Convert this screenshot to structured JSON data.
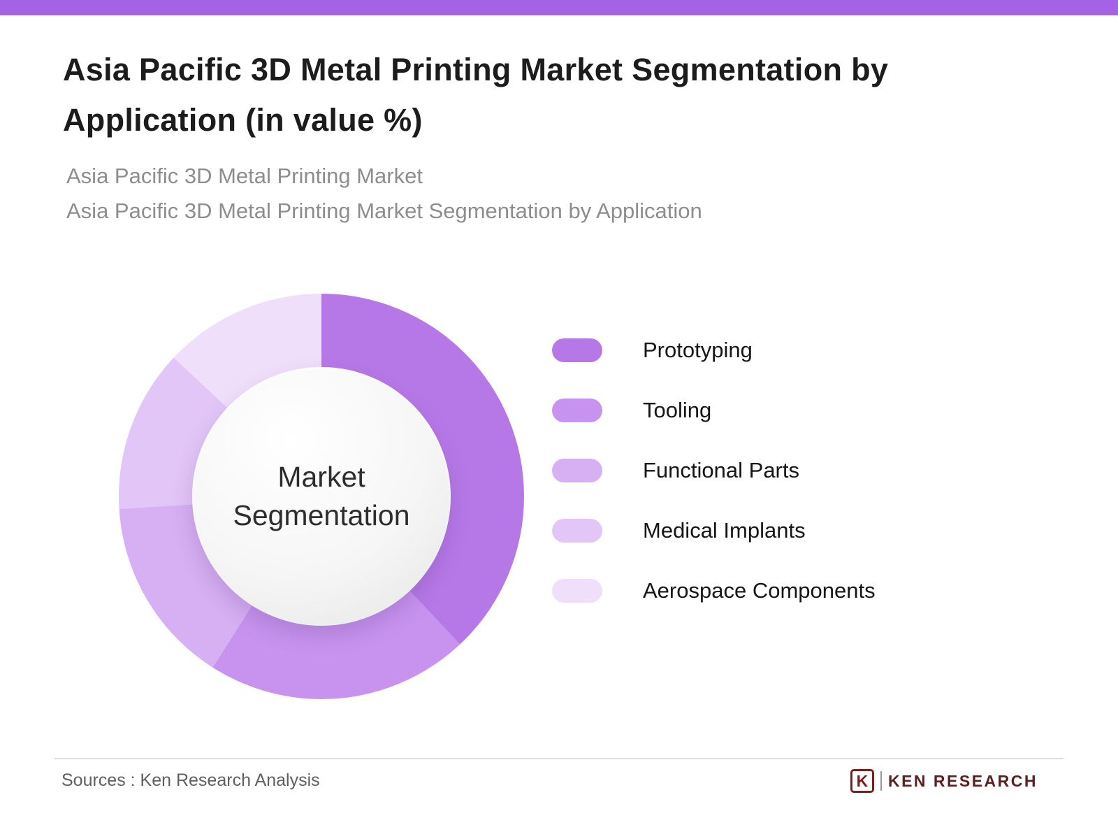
{
  "theme": {
    "accent_color": "#a562e5",
    "title_color": "#1c1c1c",
    "subtitle_color": "#8d8d8d"
  },
  "header": {
    "title": "Asia Pacific 3D Metal Printing Market Segmentation by Application (in value %)",
    "subtitle_line1": "Asia Pacific 3D Metal Printing Market",
    "subtitle_line2": "Asia Pacific 3D Metal Printing Market Segmentation by Application"
  },
  "chart_data": {
    "type": "pie",
    "variant": "donut",
    "title": "Asia Pacific 3D Metal Printing Market Segmentation by Application (in value %)",
    "center_label": "Market Segmentation",
    "categories": [
      "Prototyping",
      "Tooling",
      "Functional Parts",
      "Medical Implants",
      "Aerospace Components"
    ],
    "values": [
      38,
      21,
      15,
      13,
      13
    ],
    "unit": "%",
    "colors": [
      "#b678e6",
      "#c893ee",
      "#d7aff3",
      "#e2c6f7",
      "#efdffb"
    ],
    "legend_position": "right",
    "data_labels_shown": false,
    "start_angle_deg": 0,
    "direction": "clockwise"
  },
  "footer": {
    "source_text": "Sources : Ken Research Analysis",
    "logo_letter": "K",
    "logo_text": "KEN RESEARCH"
  }
}
